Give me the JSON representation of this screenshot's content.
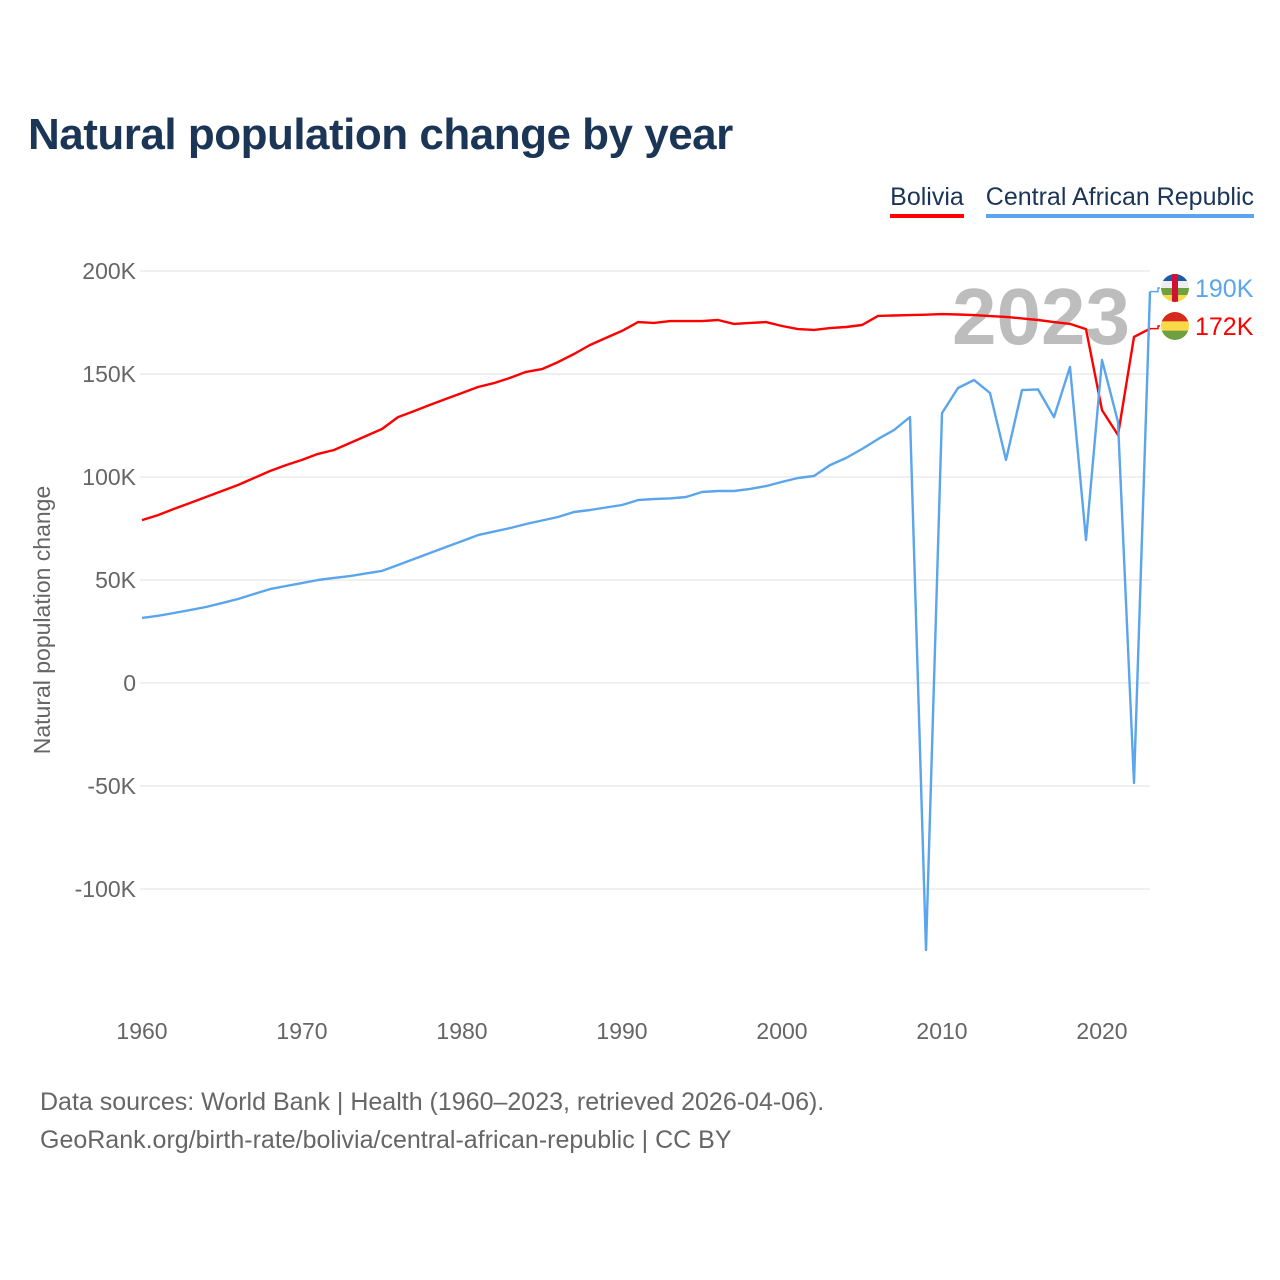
{
  "title": "Natural population change by year",
  "legend": [
    {
      "name": "Bolivia",
      "color": "#ff0000"
    },
    {
      "name": "Central African Republic",
      "color": "#5aa5eb"
    }
  ],
  "footer": {
    "line1": "Data sources: World Bank | Health (1960–2023, retrieved 2026-04-06).",
    "line2": "GeoRank.org/birth-rate/bolivia/central-african-republic | CC BY"
  },
  "chart_data": {
    "type": "line",
    "title": "Natural population change by year",
    "xlabel": "",
    "ylabel": "Natural population change",
    "year_watermark": "2023",
    "x": [
      1960,
      1961,
      1962,
      1963,
      1964,
      1965,
      1966,
      1967,
      1968,
      1969,
      1970,
      1971,
      1972,
      1973,
      1974,
      1975,
      1976,
      1977,
      1978,
      1979,
      1980,
      1981,
      1982,
      1983,
      1984,
      1985,
      1986,
      1987,
      1988,
      1989,
      1990,
      1991,
      1992,
      1993,
      1994,
      1995,
      1996,
      1997,
      1998,
      1999,
      2000,
      2001,
      2002,
      2003,
      2004,
      2005,
      2006,
      2007,
      2008,
      2009,
      2010,
      2011,
      2012,
      2013,
      2014,
      2015,
      2016,
      2017,
      2018,
      2019,
      2020,
      2021,
      2022,
      2023
    ],
    "xticks": [
      1960,
      1970,
      1980,
      1990,
      2000,
      2010,
      2020
    ],
    "xlim": [
      1960,
      2023
    ],
    "yticks": [
      200000,
      150000,
      100000,
      50000,
      0,
      -50000,
      -100000
    ],
    "ytick_labels": [
      "200K",
      "150K",
      "100K",
      "50K",
      "0",
      "-50K",
      "-100K"
    ],
    "ylim": [
      -130000,
      200000
    ],
    "grid": true,
    "legend_position": "top-right",
    "series": [
      {
        "name": "Bolivia",
        "color": "#ff0000",
        "end_label": "172K",
        "values": [
          79100,
          81500,
          84500,
          87400,
          90300,
          93200,
          96100,
          99500,
          102900,
          105800,
          108300,
          111200,
          113100,
          116500,
          119900,
          123300,
          129100,
          132000,
          135000,
          137900,
          140800,
          143700,
          145600,
          148100,
          151000,
          152400,
          155800,
          159700,
          164100,
          167500,
          170900,
          175200,
          174800,
          175700,
          175700,
          175700,
          176200,
          174300,
          174800,
          175200,
          173300,
          171800,
          171400,
          172300,
          172800,
          173800,
          178200,
          178400,
          178600,
          178800,
          179100,
          178900,
          178600,
          178100,
          177700,
          177000,
          176200,
          175200,
          174300,
          171800,
          132500,
          120400,
          168000,
          172000
        ]
      },
      {
        "name": "Central African Republic",
        "color": "#5aa5eb",
        "end_label": "190K",
        "values": [
          31600,
          32600,
          34000,
          35400,
          36900,
          38800,
          40800,
          43200,
          45600,
          47100,
          48500,
          50000,
          51000,
          51900,
          53200,
          54400,
          57300,
          60200,
          63100,
          66000,
          68900,
          71800,
          73500,
          75200,
          77200,
          78900,
          80600,
          83000,
          84000,
          85200,
          86400,
          88800,
          89300,
          89600,
          90300,
          92700,
          93200,
          93200,
          94200,
          95600,
          97600,
          99500,
          100500,
          105800,
          109200,
          113600,
          118400,
          122800,
          129100,
          -129600,
          131000,
          143200,
          147100,
          140800,
          108300,
          142200,
          142500,
          129100,
          153400,
          69400,
          156800,
          126700,
          -48500,
          190000
        ]
      }
    ]
  }
}
